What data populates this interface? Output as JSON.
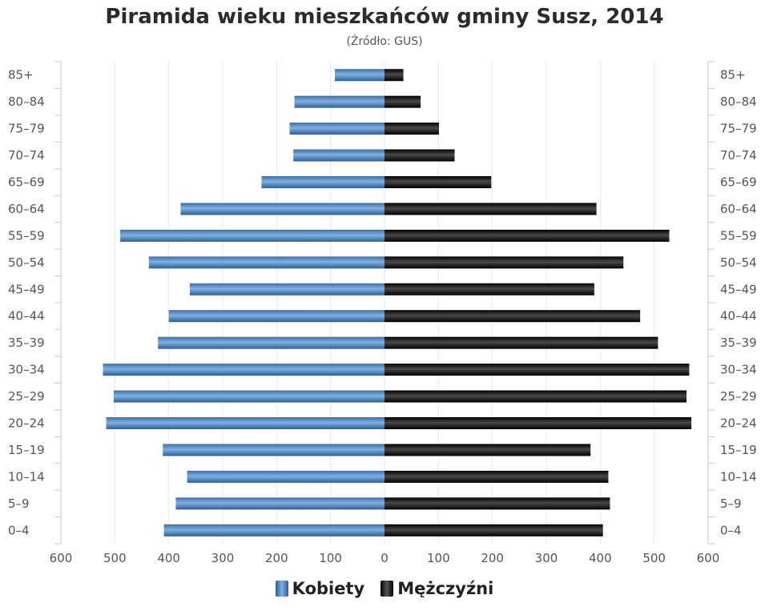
{
  "chart_data": {
    "type": "bar",
    "title": "Piramida wieku mieszkańców gminy Susz, 2014",
    "subtitle": "(Źródło: GUS)",
    "categories": [
      "85+",
      "80–84",
      "75–79",
      "70–74",
      "65–69",
      "60–64",
      "55–59",
      "50–54",
      "45–49",
      "40–44",
      "35–39",
      "30–34",
      "25–29",
      "20–24",
      "15–19",
      "10–14",
      "5–9",
      "0–4"
    ],
    "series": [
      {
        "name": "Kobiety",
        "color": "#4a86c5",
        "values": [
          92,
          167,
          176,
          169,
          228,
          378,
          490,
          437,
          361,
          400,
          420,
          522,
          502,
          516,
          411,
          366,
          387,
          409
        ]
      },
      {
        "name": "Mężczyźni",
        "color": "#1a1a1a",
        "values": [
          35,
          67,
          101,
          130,
          198,
          393,
          528,
          443,
          389,
          474,
          507,
          565,
          560,
          569,
          382,
          415,
          418,
          405
        ]
      }
    ],
    "xlim": [
      -600,
      600
    ],
    "xticks": [
      "600",
      "500",
      "400",
      "300",
      "200",
      "100",
      "0",
      "100",
      "200",
      "300",
      "400",
      "500",
      "600"
    ],
    "grid": true,
    "legend_position": "bottom-center",
    "orientation": "horizontal"
  }
}
